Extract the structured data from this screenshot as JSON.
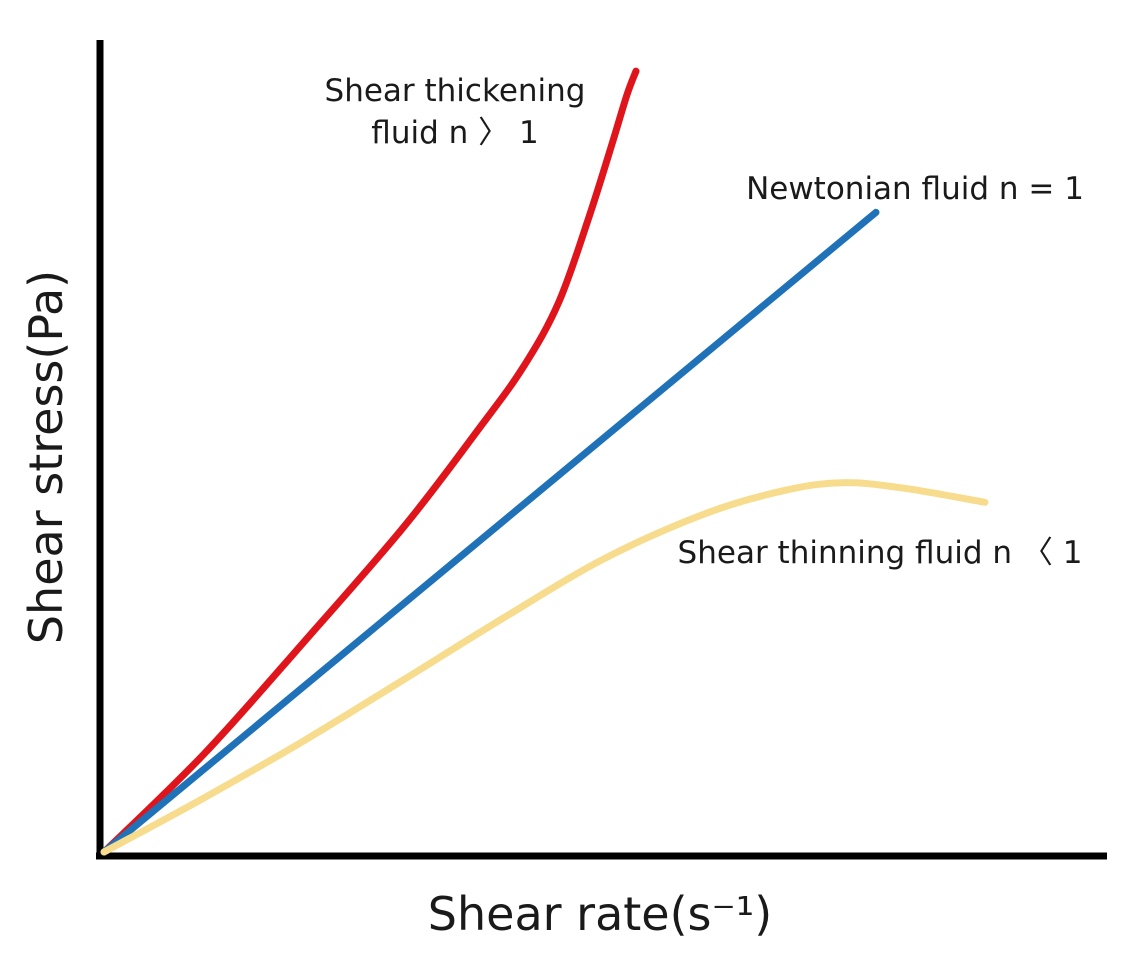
{
  "chart_data": {
    "type": "line",
    "xlabel": "Shear rate(s⁻¹)",
    "ylabel": "Shear stress(Pa)",
    "xlim": [
      0,
      100
    ],
    "ylim": [
      0,
      100
    ],
    "grid": false,
    "ticks": "none",
    "series": [
      {
        "name": "Shear thickening fluid n 〉 1",
        "label_lines": [
          "Shear thickening",
          "fluid n 〉 1"
        ],
        "color": "#e0141b",
        "x": [
          0,
          10,
          20,
          30,
          37.5,
          42,
          45.5,
          48.5,
          50.8,
          52.3,
          53.2
        ],
        "y": [
          0,
          12.5,
          26.8,
          41.5,
          54,
          62,
          70.2,
          81,
          90.3,
          96.6,
          99.6
        ]
      },
      {
        "name": "Newtonian fluid n = 1",
        "label_lines": [
          "Newtonian fluid n = 1"
        ],
        "color": "#1f72b8",
        "x": [
          0,
          77.2
        ],
        "y": [
          0,
          81.6
        ]
      },
      {
        "name": "Shear thinning fluid n 〈 1",
        "label_lines": [
          "Shear thinning fluid n 〈 1"
        ],
        "color": "#f8dc8e",
        "x": [
          0,
          10,
          20,
          30,
          40,
          50,
          60,
          68,
          73.9,
          80,
          88.1
        ],
        "y": [
          0,
          6.9,
          14.2,
          22,
          29.9,
          37.4,
          43.1,
          46.1,
          47.1,
          46.4,
          44.6
        ]
      }
    ]
  }
}
